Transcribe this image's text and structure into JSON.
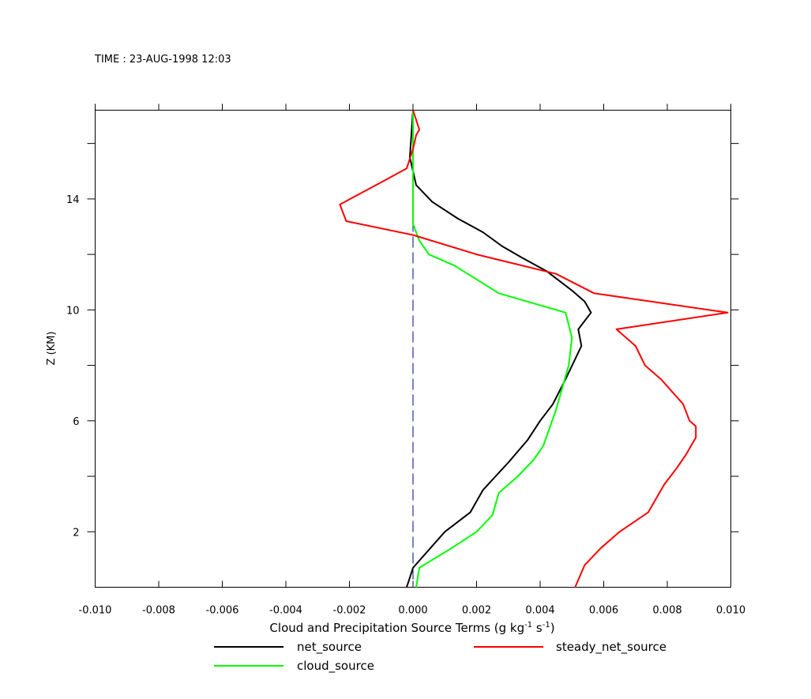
{
  "header": {
    "time_label": "TIME : 23-AUG-1998 12:03"
  },
  "chart_data": {
    "type": "line",
    "title": "",
    "xlabel": "Cloud and Precipitation Source Terms (g kg",
    "xlabel_sup1": "-1",
    "xlabel_mid": " s",
    "xlabel_sup2": "-1",
    "xlabel_end": ")",
    "ylabel": "Z (KM)",
    "xlim": [
      -0.01,
      0.01
    ],
    "ylim": [
      0,
      17.2
    ],
    "x_ticks": [
      -0.01,
      -0.008,
      -0.006,
      -0.004,
      -0.002,
      0.0,
      0.002,
      0.004,
      0.006,
      0.008,
      0.01
    ],
    "x_tick_labels": [
      "-0.010",
      "-0.008",
      "-0.006",
      "-0.004",
      "-0.002",
      "0.000",
      "0.002",
      "0.004",
      "0.006",
      "0.008",
      "0.010"
    ],
    "y_ticks": [
      2,
      6,
      10,
      14
    ],
    "y_tick_labels": [
      "2",
      "6",
      "10",
      "14"
    ],
    "y_minor_ticks": [
      2,
      4,
      6,
      8,
      10,
      12,
      14,
      16
    ],
    "zero_line": {
      "x": 0.0,
      "style": "dashed",
      "color": "#00007f"
    },
    "grid": false,
    "legend_position": "bottom",
    "series": [
      {
        "name": "net_source",
        "color": "#000000",
        "points": [
          [
            -0.0002,
            0.0
          ],
          [
            0.0,
            0.7
          ],
          [
            0.001,
            2.0
          ],
          [
            0.0018,
            2.7
          ],
          [
            0.0022,
            3.5
          ],
          [
            0.0026,
            4.0
          ],
          [
            0.003,
            4.5
          ],
          [
            0.0036,
            5.3
          ],
          [
            0.004,
            6.0
          ],
          [
            0.0044,
            6.6
          ],
          [
            0.0048,
            7.5
          ],
          [
            0.0053,
            8.7
          ],
          [
            0.0052,
            9.3
          ],
          [
            0.0056,
            9.9
          ],
          [
            0.0054,
            10.3
          ],
          [
            0.005,
            10.7
          ],
          [
            0.0042,
            11.4
          ],
          [
            0.0034,
            11.9
          ],
          [
            0.0028,
            12.3
          ],
          [
            0.0022,
            12.8
          ],
          [
            0.0014,
            13.3
          ],
          [
            0.0006,
            13.9
          ],
          [
            0.0001,
            14.5
          ],
          [
            -0.0001,
            15.5
          ],
          [
            0.0,
            17.2
          ]
        ]
      },
      {
        "name": "cloud_source",
        "color": "#00ff00",
        "points": [
          [
            0.0001,
            0.0
          ],
          [
            0.0002,
            0.7
          ],
          [
            0.0012,
            1.4
          ],
          [
            0.002,
            2.0
          ],
          [
            0.0025,
            2.6
          ],
          [
            0.0027,
            3.4
          ],
          [
            0.0033,
            4.0
          ],
          [
            0.0038,
            4.6
          ],
          [
            0.0041,
            5.1
          ],
          [
            0.0045,
            6.4
          ],
          [
            0.0049,
            8.0
          ],
          [
            0.005,
            9.0
          ],
          [
            0.0048,
            9.9
          ],
          [
            0.0027,
            10.6
          ],
          [
            0.002,
            11.1
          ],
          [
            0.0013,
            11.6
          ],
          [
            0.0005,
            12.0
          ],
          [
            0.0002,
            12.5
          ],
          [
            0.0,
            13.1
          ],
          [
            0.0,
            14.0
          ],
          [
            0.0,
            15.0
          ],
          [
            0.0,
            17.2
          ]
        ]
      },
      {
        "name": "steady_net_source",
        "color": "#ff0000",
        "points": [
          [
            0.0051,
            0.0
          ],
          [
            0.0054,
            0.8
          ],
          [
            0.0059,
            1.4
          ],
          [
            0.0065,
            2.0
          ],
          [
            0.0074,
            2.7
          ],
          [
            0.0079,
            3.7
          ],
          [
            0.0083,
            4.3
          ],
          [
            0.0086,
            4.8
          ],
          [
            0.0089,
            5.4
          ],
          [
            0.0089,
            5.8
          ],
          [
            0.0087,
            6.0
          ],
          [
            0.0085,
            6.6
          ],
          [
            0.0078,
            7.5
          ],
          [
            0.0073,
            8.0
          ],
          [
            0.007,
            8.7
          ],
          [
            0.0064,
            9.3
          ],
          [
            0.0099,
            9.9
          ],
          [
            0.0057,
            10.6
          ],
          [
            0.0045,
            11.3
          ],
          [
            0.002,
            12.0
          ],
          [
            0.0,
            12.7
          ],
          [
            -0.0021,
            13.2
          ],
          [
            -0.0023,
            13.8
          ],
          [
            -0.001,
            14.6
          ],
          [
            -0.0002,
            15.1
          ],
          [
            0.0,
            15.8
          ],
          [
            0.0001,
            16.3
          ],
          [
            0.0002,
            16.5
          ],
          [
            0.0,
            17.2
          ]
        ]
      }
    ]
  },
  "legend": {
    "items": [
      {
        "label": "net_source",
        "color": "#000000"
      },
      {
        "label": "steady_net_source",
        "color": "#ff0000"
      },
      {
        "label": "cloud_source",
        "color": "#00ff00"
      }
    ]
  }
}
